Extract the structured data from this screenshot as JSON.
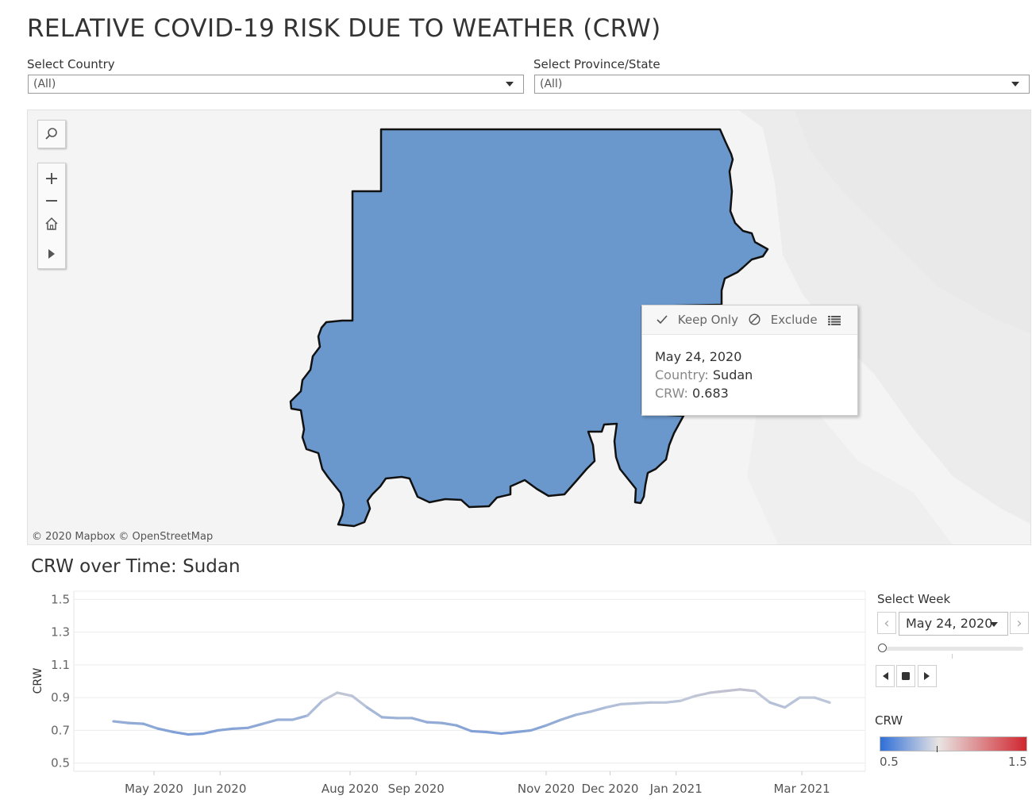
{
  "page_title": "RELATIVE COVID-19 RISK DUE TO WEATHER (CRW)",
  "filters": {
    "country_label": "Select Country",
    "country_value": "(All)",
    "province_label": "Select Province/State",
    "province_value": "(All)"
  },
  "map": {
    "country_fill": "#6a98cc",
    "attribution": "© 2020 Mapbox  © OpenStreetMap",
    "tools": [
      "search-icon",
      "zoom-in-icon",
      "zoom-out-icon",
      "home-icon",
      "play-icon"
    ]
  },
  "tooltip": {
    "keep_only": "Keep Only",
    "exclude": "Exclude",
    "date": "May 24, 2020",
    "country_key": "Country:",
    "country_value": "Sudan",
    "crw_key": "CRW:",
    "crw_value": "0.683"
  },
  "chart_title": "CRW over Time: Sudan",
  "week_control": {
    "label": "Select Week",
    "value": "May 24, 2020"
  },
  "legend": {
    "title": "CRW",
    "min": "0.5",
    "max": "1.5",
    "color_low": "#2f6fd8",
    "color_mid": "#e8e4e2",
    "color_high": "#d0262f"
  },
  "chart_data": {
    "type": "line",
    "title": "CRW over Time: Sudan",
    "xlabel": "",
    "ylabel": "CRW",
    "ylim": [
      0.5,
      1.5
    ],
    "yticks": [
      0.5,
      0.7,
      0.9,
      1.1,
      1.3,
      1.5
    ],
    "xticks": [
      "May 2020",
      "Jun 2020",
      "Aug 2020",
      "Sep 2020",
      "Nov 2020",
      "Dec 2020",
      "Jan 2021",
      "Mar 2021"
    ],
    "x_start": "2020-04-12",
    "x_step_days": 7,
    "series": [
      {
        "name": "",
        "values": [
          0.755,
          0.745,
          0.74,
          0.71,
          0.69,
          0.675,
          0.68,
          0.7,
          0.71,
          0.715,
          0.74,
          0.765,
          0.765,
          0.79,
          0.88,
          0.93,
          0.91,
          0.84,
          0.78,
          0.775,
          0.775,
          0.75,
          0.745,
          0.73,
          0.695,
          0.69,
          0.68,
          0.69,
          0.7,
          0.73,
          0.765,
          0.795,
          0.815,
          0.84,
          0.86,
          0.865,
          0.87,
          0.87,
          0.88,
          0.91,
          0.93,
          0.94,
          0.95,
          0.94,
          0.87,
          0.84,
          0.9,
          0.9,
          0.87
        ]
      }
    ]
  }
}
